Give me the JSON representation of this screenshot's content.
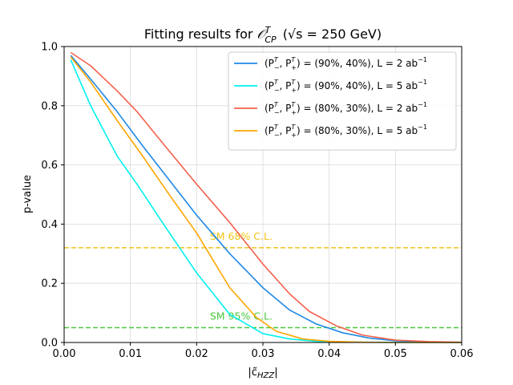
{
  "chart_data": {
    "type": "line",
    "title": "Fitting results for 𝒪ᵀ_CP  (√s = 250 GeV)",
    "title_parts": {
      "prefix": "Fitting results for ",
      "op_main": "𝒪",
      "op_sup": "T",
      "op_sub": "CP",
      "energy": "(√s = 250 GeV)"
    },
    "xlabel": "|c̃",
    "xlabel_sub": "HZZ",
    "xlabel_end": "|",
    "ylabel": "p-value",
    "xlim": [
      0,
      0.06
    ],
    "ylim": [
      0,
      1.0
    ],
    "xticks": [
      "0.00",
      "0.01",
      "0.02",
      "0.03",
      "0.04",
      "0.05",
      "0.06"
    ],
    "yticks": [
      "0.0",
      "0.2",
      "0.4",
      "0.6",
      "0.8",
      "1.0"
    ],
    "grid": true,
    "legend_position": "top-right",
    "series": [
      {
        "name": "(P−ᵀ, P+ᵀ) = (90%, 40%), L = 2 ab⁻¹",
        "legend": {
          "pol": "(90%, 40%)",
          "lumi": "2"
        },
        "color": "#1e88e5",
        "x": [
          0.001,
          0.004,
          0.008,
          0.012,
          0.016,
          0.02,
          0.025,
          0.03,
          0.034,
          0.038,
          0.042,
          0.046,
          0.05,
          0.055,
          0.06
        ],
        "y": [
          0.97,
          0.89,
          0.78,
          0.66,
          0.545,
          0.43,
          0.3,
          0.185,
          0.11,
          0.063,
          0.033,
          0.015,
          0.006,
          0.002,
          0.0005
        ]
      },
      {
        "name": "(P−ᵀ, P+ᵀ) = (90%, 40%), L = 5 ab⁻¹",
        "legend": {
          "pol": "(90%, 40%)",
          "lumi": "5"
        },
        "color": "#00f0f0",
        "x": [
          0.001,
          0.004,
          0.008,
          0.011,
          0.015,
          0.02,
          0.025,
          0.03,
          0.034,
          0.038,
          0.045,
          0.06
        ],
        "y": [
          0.955,
          0.8,
          0.63,
          0.535,
          0.4,
          0.235,
          0.095,
          0.03,
          0.012,
          0.004,
          0.0008,
          0.0
        ]
      },
      {
        "name": "(P−ᵀ, P+ᵀ) = (80%, 30%), L = 2 ab⁻¹",
        "legend": {
          "pol": "(80%, 30%)",
          "lumi": "2"
        },
        "color": "#f4604c",
        "x": [
          0.001,
          0.004,
          0.008,
          0.011,
          0.015,
          0.02,
          0.025,
          0.03,
          0.034,
          0.037,
          0.041,
          0.045,
          0.05,
          0.055,
          0.06
        ],
        "y": [
          0.98,
          0.935,
          0.85,
          0.78,
          0.67,
          0.535,
          0.405,
          0.265,
          0.165,
          0.105,
          0.057,
          0.025,
          0.008,
          0.003,
          0.001
        ]
      },
      {
        "name": "(P−ᵀ, P+ᵀ) = (80%, 30%), L = 5 ab⁻¹",
        "legend": {
          "pol": "(80%, 30%)",
          "lumi": "5"
        },
        "color": "#ffa500",
        "x": [
          0.001,
          0.004,
          0.008,
          0.012,
          0.016,
          0.02,
          0.025,
          0.029,
          0.032,
          0.036,
          0.04,
          0.045,
          0.05,
          0.06
        ],
        "y": [
          0.965,
          0.88,
          0.75,
          0.625,
          0.495,
          0.37,
          0.185,
          0.085,
          0.038,
          0.012,
          0.004,
          0.001,
          0.0,
          0.0
        ]
      }
    ],
    "reference_lines": [
      {
        "label": "SM 68% C.L.",
        "y": 0.32,
        "color": "#f0c419"
      },
      {
        "label": "SM 95% C.L.",
        "y": 0.05,
        "color": "#4ac93e"
      }
    ],
    "legend_text": {
      "lhs_prefix": "(P",
      "minus": "−",
      "plus": "+",
      "sup": "T",
      "lumi_prefix": "L = ",
      "lumi_unit": " ab",
      "lumi_sup": "−1"
    }
  }
}
